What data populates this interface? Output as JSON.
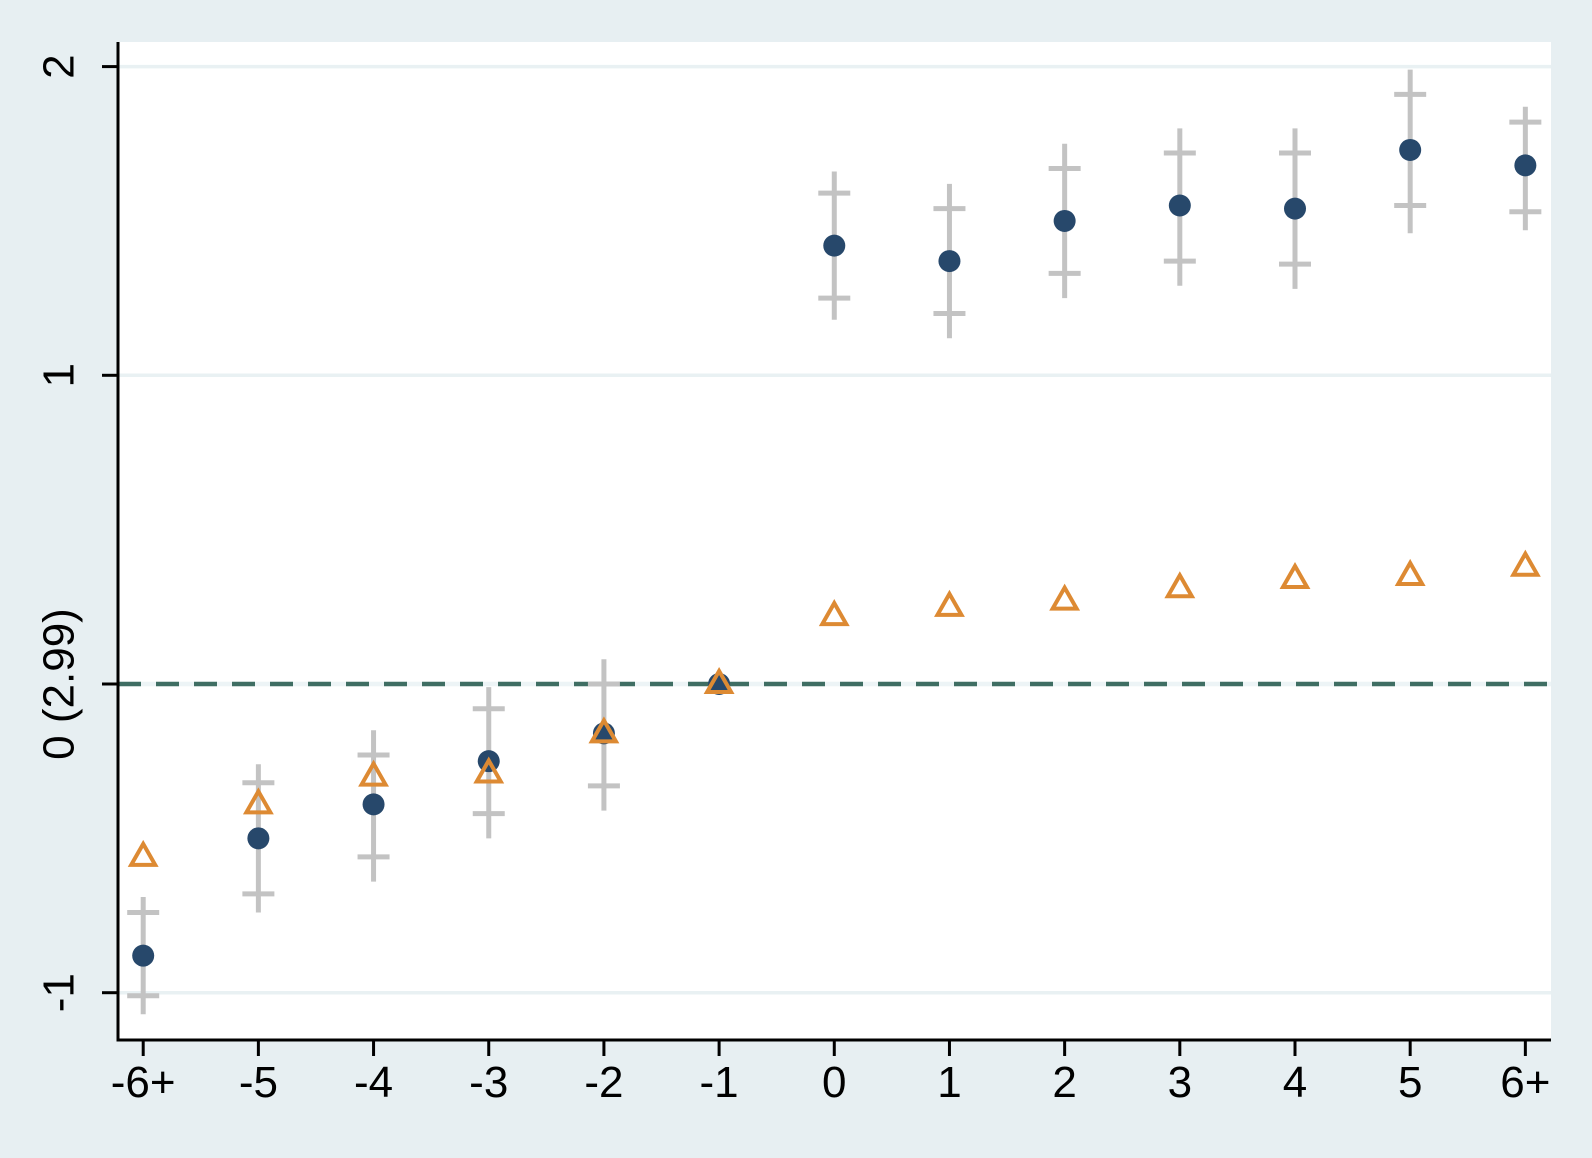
{
  "chart_data": {
    "type": "scatter",
    "title": "",
    "xlabel": "",
    "ylabel": "",
    "x_ticks": [
      {
        "label": "-6+",
        "value": -6
      },
      {
        "label": "-5",
        "value": -5
      },
      {
        "label": "-4",
        "value": -4
      },
      {
        "label": "-3",
        "value": -3
      },
      {
        "label": "-2",
        "value": -2
      },
      {
        "label": "-1",
        "value": -1
      },
      {
        "label": "0",
        "value": 0
      },
      {
        "label": "1",
        "value": 1
      },
      {
        "label": "2",
        "value": 2
      },
      {
        "label": "3",
        "value": 3
      },
      {
        "label": "4",
        "value": 4
      },
      {
        "label": "5",
        "value": 5
      },
      {
        "label": "6+",
        "value": 6
      }
    ],
    "y_ticks": [
      {
        "label": "2",
        "value": 2
      },
      {
        "label": "1",
        "value": 1
      },
      {
        "label": "0 (2.99)",
        "value": 0
      },
      {
        "label": "-1",
        "value": -1
      }
    ],
    "ylim": [
      -1.16,
      2.08
    ],
    "grid": true,
    "legend": "none",
    "reference_line": {
      "y": 0,
      "pattern": "dash"
    },
    "series": [
      {
        "name": "point-estimate-circles",
        "marker": "circle",
        "x": [
          -6,
          -5,
          -4,
          -3,
          -2,
          -1,
          0,
          1,
          2,
          3,
          4,
          5,
          6
        ],
        "y": [
          -0.88,
          -0.5,
          -0.39,
          -0.25,
          -0.16,
          0.0,
          1.42,
          1.37,
          1.5,
          1.55,
          1.54,
          1.73,
          1.68
        ],
        "ci_outer": [
          [
            -1.07,
            -0.69
          ],
          [
            -0.74,
            -0.26
          ],
          [
            -0.64,
            -0.15
          ],
          [
            -0.5,
            -0.01
          ],
          [
            -0.41,
            0.08
          ],
          null,
          [
            1.18,
            1.66
          ],
          [
            1.12,
            1.62
          ],
          [
            1.25,
            1.75
          ],
          [
            1.29,
            1.8
          ],
          [
            1.28,
            1.8
          ],
          [
            1.46,
            1.99
          ],
          [
            1.47,
            1.87
          ]
        ],
        "ci_inner": [
          [
            -1.01,
            -0.74
          ],
          [
            -0.68,
            -0.32
          ],
          [
            -0.56,
            -0.23
          ],
          [
            -0.42,
            -0.08
          ],
          [
            -0.33,
            0.0
          ],
          null,
          [
            1.25,
            1.59
          ],
          [
            1.2,
            1.54
          ],
          [
            1.33,
            1.67
          ],
          [
            1.37,
            1.72
          ],
          [
            1.36,
            1.72
          ],
          [
            1.55,
            1.91
          ],
          [
            1.53,
            1.82
          ]
        ]
      },
      {
        "name": "second-estimate-triangles",
        "marker": "triangle",
        "x": [
          -6,
          -5,
          -4,
          -3,
          -2,
          -1,
          0,
          1,
          2,
          3,
          4,
          5,
          6
        ],
        "y": [
          -0.56,
          -0.39,
          -0.3,
          -0.29,
          -0.16,
          0.0,
          0.22,
          0.25,
          0.27,
          0.31,
          0.34,
          0.35,
          0.38
        ]
      }
    ],
    "colors": {
      "circle_marker": "#27486b",
      "triangle_marker": "#dd8a33",
      "error_bar": "#c3c3c3",
      "reference_line": "#3f6e63",
      "reference_line_gap": "#edf4f6",
      "gridline": "#e9f1f3",
      "axis": "#000000",
      "background": "#e7eff2",
      "plot_background": "#ffffff"
    }
  }
}
